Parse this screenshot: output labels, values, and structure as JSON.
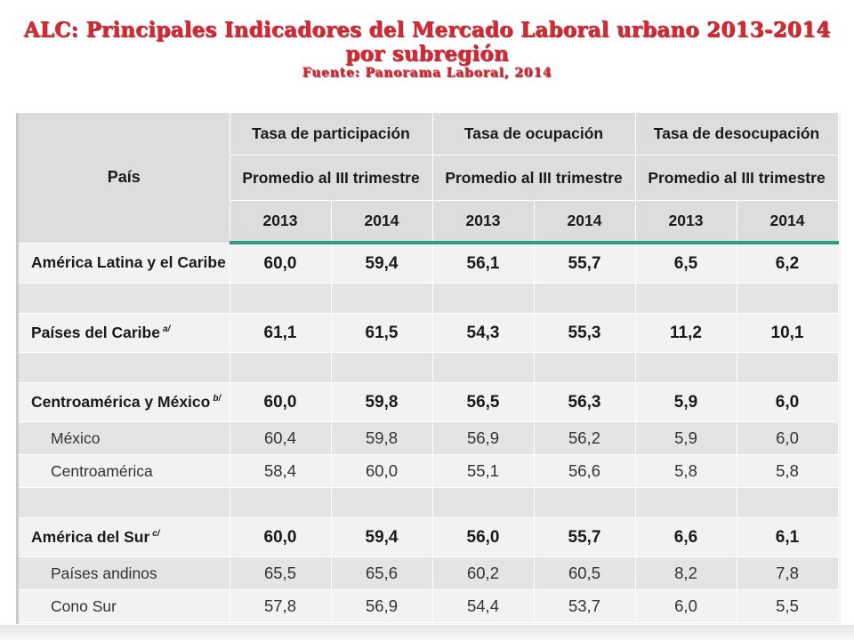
{
  "slide": {
    "title_line1": "ALC: Principales Indicadores del Mercado Laboral urbano 2013-2014",
    "title_line2": "por subregión",
    "source": "Fuente: Panorama Laboral, 2014"
  },
  "colors": {
    "title": "#d42a35",
    "header_rule": "#2f9b80",
    "header_bg": "#dddddd",
    "row_bg": "#f2f2f2",
    "row_alt_bg": "#e4e4e4"
  },
  "table": {
    "col_pais": "País",
    "groups": [
      "Tasa de participación",
      "Tasa de ocupación",
      "Tasa de desocupación"
    ],
    "subheader": "Promedio al III trimestre",
    "years": [
      "2013",
      "2014"
    ],
    "rows": {
      "alc": {
        "label": "América Latina y el Caribe",
        "note": "",
        "values": [
          "60,0",
          "59,4",
          "56,1",
          "55,7",
          "6,5",
          "6,2"
        ]
      },
      "caribe": {
        "label": "Países del Caribe",
        "note": "a/",
        "values": [
          "61,1",
          "61,5",
          "54,3",
          "55,3",
          "11,2",
          "10,1"
        ]
      },
      "centro_mex": {
        "label": "Centroamérica y México",
        "note": "b/",
        "values": [
          "60,0",
          "59,8",
          "56,5",
          "56,3",
          "5,9",
          "6,0"
        ]
      },
      "mexico": {
        "label": "México",
        "note": "",
        "values": [
          "60,4",
          "59,8",
          "56,9",
          "56,2",
          "5,9",
          "6,0"
        ]
      },
      "centroamerica": {
        "label": "Centroamérica",
        "note": "",
        "values": [
          "58,4",
          "60,0",
          "55,1",
          "56,6",
          "5,8",
          "5,8"
        ]
      },
      "sur": {
        "label": "América del Sur",
        "note": "c/",
        "values": [
          "60,0",
          "59,4",
          "56,0",
          "55,7",
          "6,6",
          "6,1"
        ]
      },
      "andinos": {
        "label": "Países andinos",
        "note": "",
        "values": [
          "65,5",
          "65,6",
          "60,2",
          "60,5",
          "8,2",
          "7,8"
        ]
      },
      "cono": {
        "label": "Cono Sur",
        "note": "",
        "values": [
          "57,8",
          "56,9",
          "54,4",
          "53,7",
          "6,0",
          "5,5"
        ]
      }
    }
  }
}
